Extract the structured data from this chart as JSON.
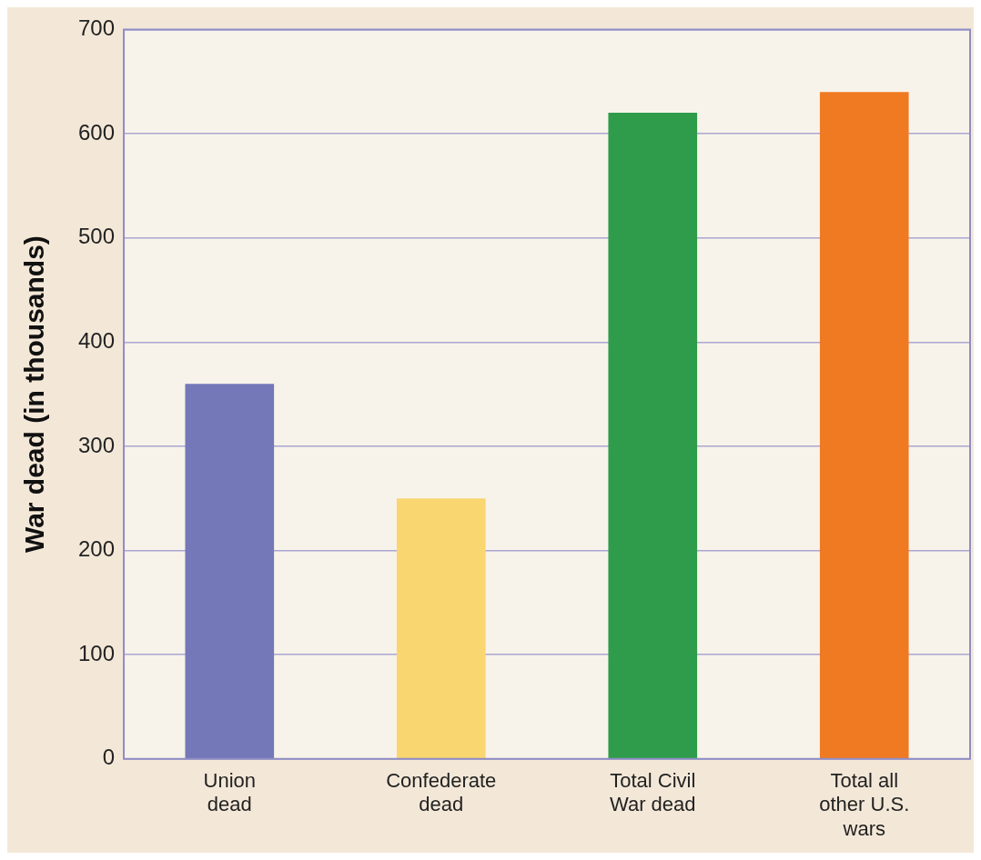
{
  "chart_data": {
    "type": "bar",
    "ylabel": "War dead (in thousands)",
    "categories": [
      "Union dead",
      "Confederate dead",
      "Total Civil War dead",
      "Total all other U.S. wars"
    ],
    "values": [
      360,
      250,
      620,
      640
    ],
    "colors": [
      "#7478b8",
      "#f9d670",
      "#2e9c4a",
      "#f07a22"
    ],
    "ylim": [
      0,
      700
    ],
    "yticks": [
      0,
      100,
      200,
      300,
      400,
      500,
      600,
      700
    ],
    "grid": "y",
    "legend": false
  }
}
